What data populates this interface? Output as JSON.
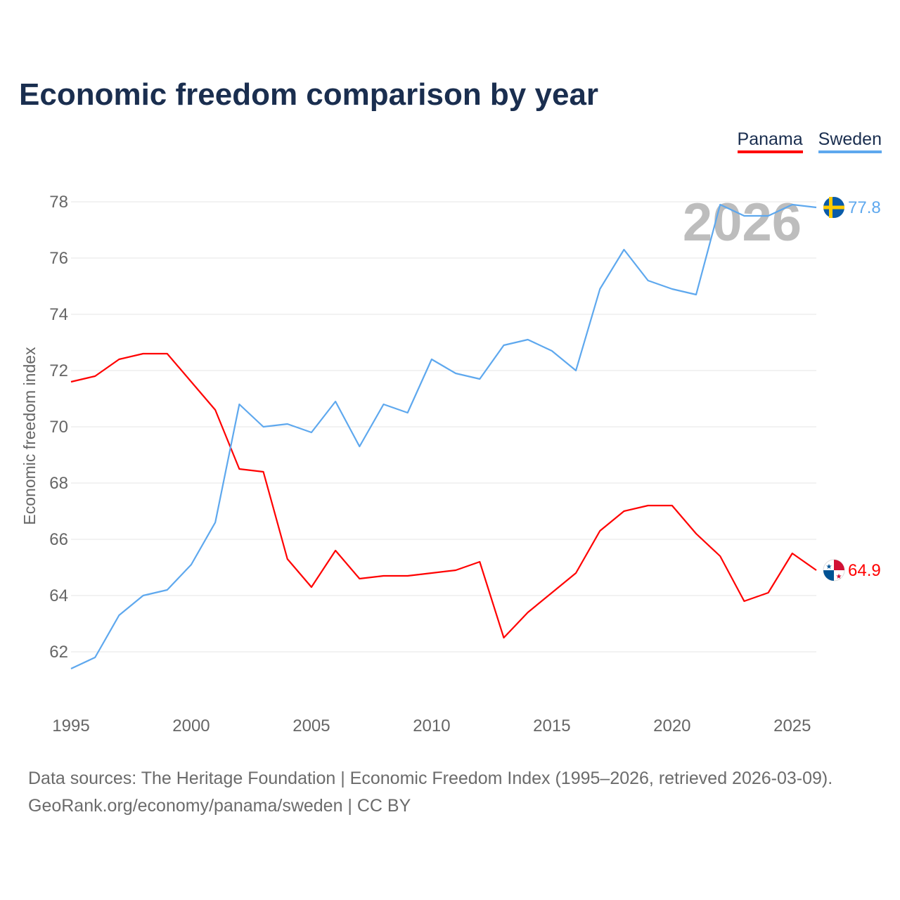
{
  "chart_data": {
    "type": "line",
    "title": "Economic freedom comparison by year",
    "xlabel": "",
    "ylabel": "Economic freedom index",
    "xlim": [
      1995,
      2026
    ],
    "ylim": [
      60,
      78
    ],
    "yticks": [
      62,
      64,
      66,
      68,
      70,
      72,
      74,
      76,
      78
    ],
    "xticks": [
      1995,
      2000,
      2005,
      2010,
      2015,
      2020,
      2025
    ],
    "grid": true,
    "legend_position": "top-right",
    "watermark_year": "2026",
    "x": [
      1995,
      1996,
      1997,
      1998,
      1999,
      2000,
      2001,
      2002,
      2003,
      2004,
      2005,
      2006,
      2007,
      2008,
      2009,
      2010,
      2011,
      2012,
      2013,
      2014,
      2015,
      2016,
      2017,
      2018,
      2019,
      2020,
      2021,
      2022,
      2023,
      2024,
      2025,
      2026
    ],
    "series": [
      {
        "name": "Panama",
        "color": "#ff0000",
        "end_label": "64.9",
        "values": [
          71.6,
          71.8,
          72.4,
          72.6,
          72.6,
          71.6,
          70.6,
          68.5,
          68.4,
          65.3,
          64.3,
          65.6,
          64.6,
          64.7,
          64.7,
          64.8,
          64.9,
          65.2,
          62.5,
          63.4,
          64.1,
          64.8,
          66.3,
          67.0,
          67.2,
          67.2,
          66.2,
          65.4,
          63.8,
          64.1,
          65.5,
          64.9
        ]
      },
      {
        "name": "Sweden",
        "color": "#5ea8ee",
        "end_label": "77.8",
        "values": [
          61.4,
          61.8,
          63.3,
          64.0,
          64.2,
          65.1,
          66.6,
          70.8,
          70.0,
          70.1,
          69.8,
          70.9,
          69.3,
          70.8,
          70.5,
          72.4,
          71.9,
          71.7,
          72.9,
          73.1,
          72.7,
          72.0,
          74.9,
          76.3,
          75.2,
          74.9,
          74.7,
          77.9,
          77.5,
          77.5,
          77.9,
          77.8
        ]
      }
    ]
  },
  "footer": {
    "line1": "Data sources: The Heritage Foundation | Economic Freedom Index (1995–2026, retrieved 2026-03-09).",
    "line2": "GeoRank.org/economy/panama/sweden | CC BY"
  }
}
